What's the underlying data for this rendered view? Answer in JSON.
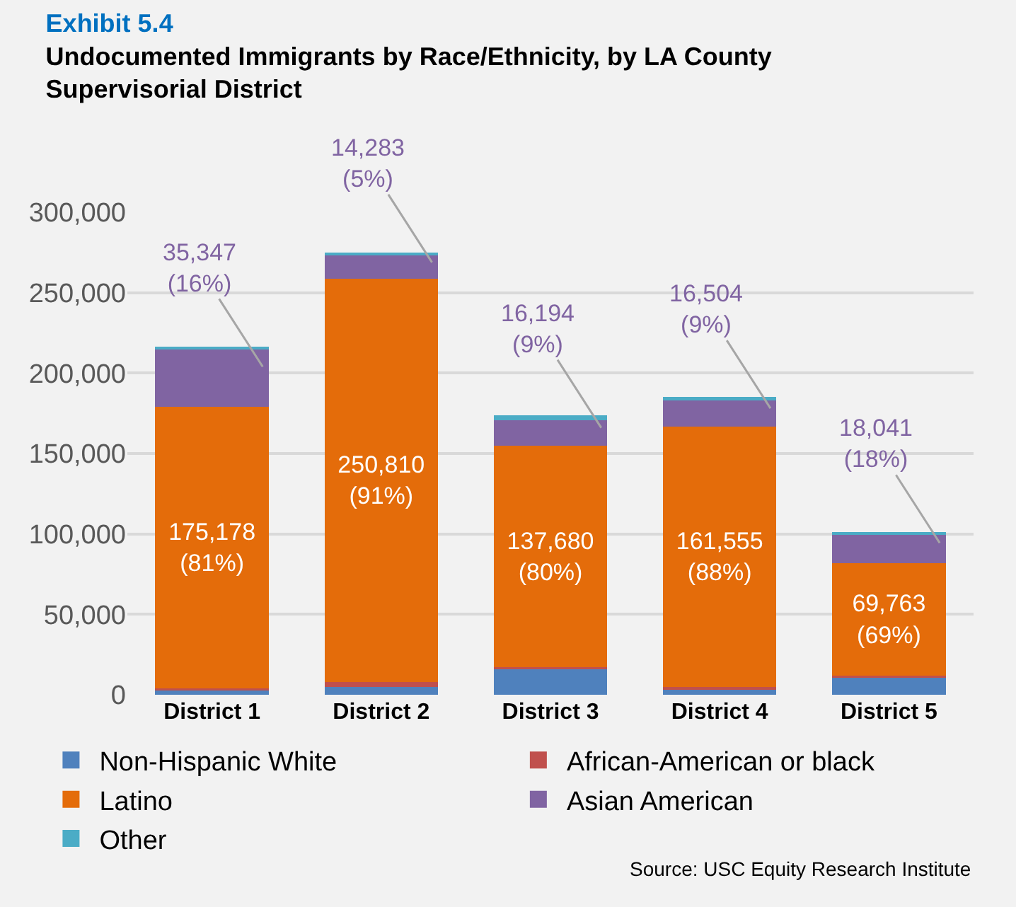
{
  "chart_data": {
    "type": "bar",
    "stacked": true,
    "title": "Exhibit 5.4",
    "subtitle": "Undocumented Immigrants by Race/Ethnicity, by LA County Supervisorial District",
    "categories": [
      "District 1",
      "District 2",
      "District 3",
      "District 4",
      "District 5"
    ],
    "series": [
      {
        "name": "Non-Hispanic White",
        "color": "#4f81bd",
        "values": [
          3000,
          5000,
          16000,
          3000,
          11000
        ]
      },
      {
        "name": "African-American or black",
        "color": "#c0504d",
        "values": [
          1000,
          3000,
          1000,
          2000,
          1000
        ]
      },
      {
        "name": "Latino",
        "color": "#e46c0a",
        "values": [
          175178,
          250810,
          137680,
          161555,
          69763
        ],
        "value_labels": [
          "175,178\n(81%)",
          "250,810\n(91%)",
          "137,680\n(80%)",
          "161,555\n(88%)",
          "69,763\n(69%)"
        ]
      },
      {
        "name": "Asian American",
        "color": "#8064a2",
        "values": [
          35347,
          14283,
          16194,
          16504,
          18041
        ],
        "value_labels": [
          "35,347\n(16%)",
          "14,283\n(5%)",
          "16,194\n(9%)",
          "16,504\n(9%)",
          "18,041\n(18%)"
        ]
      },
      {
        "name": "Other",
        "color": "#4bacc6",
        "values": [
          2000,
          2000,
          3000,
          2000,
          1000
        ]
      }
    ],
    "ylim": [
      0,
      300000
    ],
    "yticks": [
      {
        "value": 0,
        "label": "0"
      },
      {
        "value": 50000,
        "label": "50,000"
      },
      {
        "value": 100000,
        "label": "100,000"
      },
      {
        "value": 150000,
        "label": "150,000"
      },
      {
        "value": 200000,
        "label": "200,000"
      },
      {
        "value": 250000,
        "label": "250,000"
      },
      {
        "value": 300000,
        "label": "300,000"
      }
    ],
    "grid": "y",
    "legend": "bottom",
    "annotations": [
      "Source: USC Equity Research Institute"
    ]
  }
}
